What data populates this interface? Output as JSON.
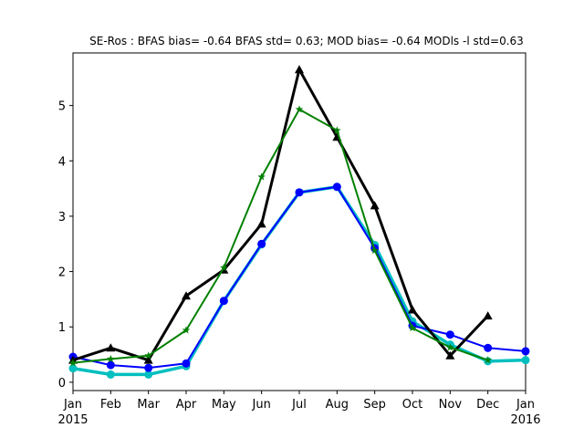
{
  "chart_data": {
    "type": "line",
    "title": "SE-Ros   : BFAS bias= -0.64 BFAS std= 0.63; MOD bias= -0.64 MODls -l std=0.63",
    "xlabel": "",
    "ylabel": "",
    "x_ticks": [
      {
        "label": "Jan",
        "sublabel": "2015"
      },
      {
        "label": "Feb",
        "sublabel": ""
      },
      {
        "label": "Mar",
        "sublabel": ""
      },
      {
        "label": "Apr",
        "sublabel": ""
      },
      {
        "label": "May",
        "sublabel": ""
      },
      {
        "label": "Jun",
        "sublabel": ""
      },
      {
        "label": "Jul",
        "sublabel": ""
      },
      {
        "label": "Aug",
        "sublabel": ""
      },
      {
        "label": "Sep",
        "sublabel": ""
      },
      {
        "label": "Oct",
        "sublabel": ""
      },
      {
        "label": "Nov",
        "sublabel": ""
      },
      {
        "label": "Dec",
        "sublabel": ""
      },
      {
        "label": "Jan",
        "sublabel": "2016"
      }
    ],
    "y_ticks": [
      0,
      1,
      2,
      3,
      4,
      5
    ],
    "xlim": [
      0,
      12
    ],
    "ylim": [
      -0.15,
      5.95
    ],
    "grid": false,
    "series": [
      {
        "color": "#00bfbf",
        "marker": "circle",
        "width": 3.5,
        "x": [
          0,
          1,
          2,
          3,
          4,
          5,
          6,
          7,
          8,
          9,
          10,
          11,
          12
        ],
        "y": [
          0.25,
          0.14,
          0.14,
          0.29,
          1.47,
          2.49,
          3.43,
          3.53,
          2.48,
          1.1,
          0.68,
          0.38,
          0.4
        ]
      },
      {
        "color": "#0000ff",
        "marker": "circle",
        "width": 2,
        "x": [
          0,
          1,
          2,
          3,
          4,
          5,
          6,
          7,
          8,
          9,
          10,
          11,
          12
        ],
        "y": [
          0.46,
          0.31,
          0.26,
          0.34,
          1.47,
          2.5,
          3.43,
          3.53,
          2.42,
          1.02,
          0.86,
          0.62,
          0.56
        ]
      },
      {
        "color": "#000000",
        "marker": "triangle",
        "width": 3,
        "x": [
          0,
          1,
          2,
          3,
          4,
          5,
          6,
          7,
          8,
          9,
          10,
          11
        ],
        "y": [
          0.4,
          0.62,
          0.4,
          1.56,
          2.03,
          2.86,
          5.65,
          4.43,
          3.19,
          1.31,
          0.48,
          1.2
        ]
      },
      {
        "color": "#008000",
        "marker": "star",
        "width": 2,
        "x": [
          0,
          1,
          2,
          3,
          4,
          5,
          6,
          7,
          8,
          9,
          10,
          11
        ],
        "y": [
          0.35,
          0.42,
          0.48,
          0.94,
          2.07,
          3.71,
          4.93,
          4.55,
          2.38,
          0.98,
          0.63,
          0.4
        ]
      }
    ]
  }
}
